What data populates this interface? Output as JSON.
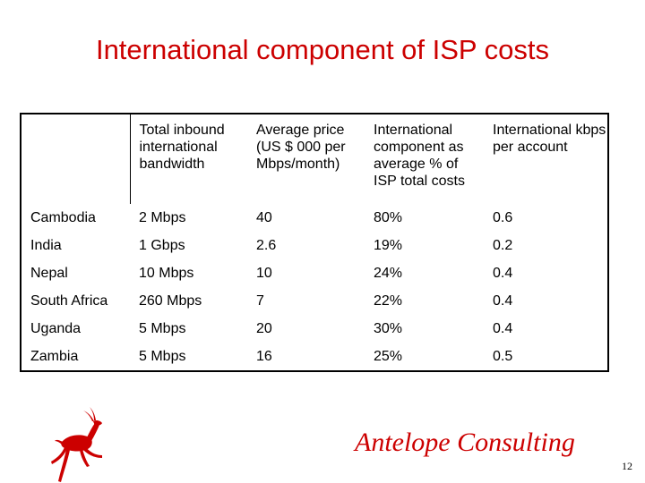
{
  "title": "International component of ISP costs",
  "table": {
    "headers": [
      "",
      "Total inbound international bandwidth",
      "Average price (US $ 000 per Mbps/month)",
      "International component as average % of ISP total costs",
      "International kbps per account"
    ],
    "rows": [
      [
        "Cambodia",
        "2 Mbps",
        "40",
        "80%",
        "0.6"
      ],
      [
        "India",
        "1 Gbps",
        "2.6",
        "19%",
        "0.2"
      ],
      [
        "Nepal",
        "10 Mbps",
        "10",
        "24%",
        "0.4"
      ],
      [
        "South Africa",
        "260 Mbps",
        "7",
        "22%",
        "0.4"
      ],
      [
        "Uganda",
        "5 Mbps",
        "20",
        "30%",
        "0.4"
      ],
      [
        "Zambia",
        "5 Mbps",
        "16",
        "25%",
        "0.5"
      ]
    ]
  },
  "brand": "Antelope Consulting",
  "logo": {
    "icon": "antelope-icon",
    "color": "#cc0000"
  },
  "page_number": "12"
}
